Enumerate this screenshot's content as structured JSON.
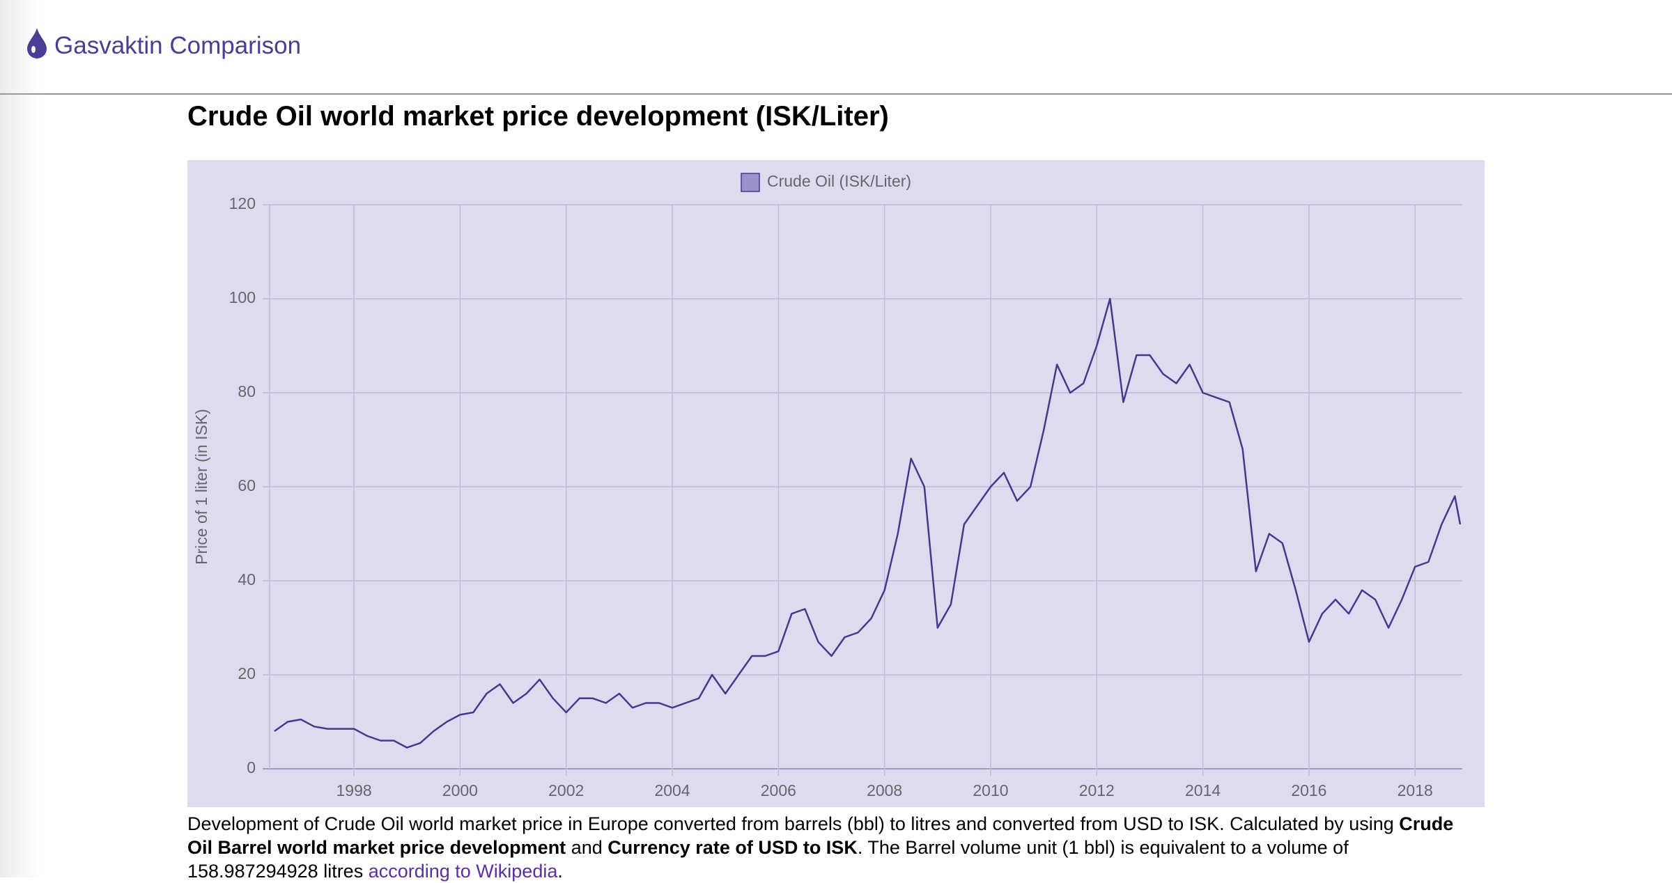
{
  "header": {
    "title": "Gasvaktin Comparison"
  },
  "chart_data": {
    "type": "line",
    "title": "Crude Oil world market price development (ISK/Liter)",
    "y_label": "Price of 1 liter (in ISK)",
    "x": [
      1996.5,
      1996.75,
      1997.0,
      1997.25,
      1997.5,
      1997.75,
      1998.0,
      1998.25,
      1998.5,
      1998.75,
      1999.0,
      1999.25,
      1999.5,
      1999.75,
      2000.0,
      2000.25,
      2000.5,
      2000.75,
      2001.0,
      2001.25,
      2001.5,
      2001.75,
      2002.0,
      2002.25,
      2002.5,
      2002.75,
      2003.0,
      2003.25,
      2003.5,
      2003.75,
      2004.0,
      2004.25,
      2004.5,
      2004.75,
      2005.0,
      2005.25,
      2005.5,
      2005.75,
      2006.0,
      2006.25,
      2006.5,
      2006.75,
      2007.0,
      2007.25,
      2007.5,
      2007.75,
      2008.0,
      2008.25,
      2008.5,
      2008.75,
      2009.0,
      2009.25,
      2009.5,
      2009.75,
      2010.0,
      2010.25,
      2010.5,
      2010.75,
      2011.0,
      2011.25,
      2011.5,
      2011.75,
      2012.0,
      2012.25,
      2012.5,
      2012.75,
      2013.0,
      2013.25,
      2013.5,
      2013.75,
      2014.0,
      2014.25,
      2014.5,
      2014.75,
      2015.0,
      2015.25,
      2015.5,
      2015.75,
      2016.0,
      2016.25,
      2016.5,
      2016.75,
      2017.0,
      2017.25,
      2017.5,
      2017.75,
      2018.0,
      2018.25,
      2018.5,
      2018.75,
      2018.85
    ],
    "series": [
      {
        "name": "Crude Oil (ISK/Liter)",
        "color": "#46398a",
        "legend_color": "#9b92cc",
        "values": [
          8,
          10,
          10.5,
          9,
          8.5,
          8.5,
          8.5,
          7,
          6,
          6,
          4.5,
          5.5,
          8,
          10,
          11.5,
          12,
          16,
          18,
          14,
          16,
          19,
          15,
          12,
          15,
          15,
          14,
          16,
          13,
          14,
          14,
          13,
          14,
          15,
          20,
          16,
          20,
          24,
          24,
          25,
          33,
          34,
          27,
          24,
          28,
          29,
          32,
          38,
          50,
          66,
          60,
          30,
          35,
          52,
          56,
          60,
          63,
          57,
          60,
          72,
          86,
          80,
          82,
          90,
          100,
          78,
          88,
          88,
          84,
          82,
          86,
          80,
          79,
          78,
          68,
          42,
          50,
          48,
          38,
          27,
          33,
          36,
          33,
          38,
          36,
          30,
          36,
          43,
          44,
          52,
          58,
          52
        ]
      }
    ],
    "xlim": [
      1996.41,
      2018.89
    ],
    "xticks": [
      1998,
      2000,
      2002,
      2004,
      2006,
      2008,
      2010,
      2012,
      2014,
      2016,
      2018
    ],
    "ylim": [
      0,
      120
    ],
    "yticks": [
      0,
      20,
      40,
      60,
      80,
      100,
      120
    ],
    "grid": true,
    "legend": "top"
  },
  "description": {
    "text1": "Development of Crude Oil world market price in Europe converted from barrels (bbl) to litres and converted from USD to ISK. Calculated by using ",
    "bold1": "Crude Oil Barrel world market price development",
    "text2": " and ",
    "bold2": "Currency rate of USD to ISK",
    "text3": ". The Barrel volume unit (1 bbl) is equivalent to a volume of 158.987294928 litres ",
    "link": "according to Wikipedia",
    "text4": "."
  }
}
